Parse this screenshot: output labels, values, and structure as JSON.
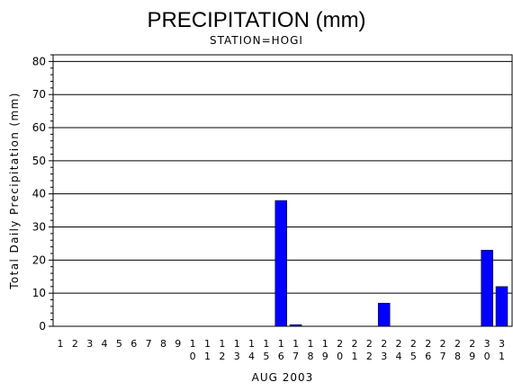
{
  "chart_data": {
    "type": "bar",
    "title": "PRECIPITATION (mm)",
    "subtitle": "STATION=HOGI",
    "xlabel": "AUG 2003",
    "ylabel": "Total Daily Precipitation (mm)",
    "ylim": [
      0,
      82
    ],
    "yticks": [
      0,
      10,
      20,
      30,
      40,
      50,
      60,
      70,
      80
    ],
    "grid": "horizontal",
    "bar_color": "#0000ff",
    "categories": [
      "1",
      "2",
      "3",
      "4",
      "5",
      "6",
      "7",
      "8",
      "9",
      "10",
      "11",
      "12",
      "13",
      "14",
      "15",
      "16",
      "17",
      "18",
      "19",
      "20",
      "21",
      "22",
      "23",
      "24",
      "25",
      "26",
      "27",
      "28",
      "29",
      "30",
      "31"
    ],
    "values": [
      0,
      0,
      0,
      0,
      0,
      0,
      0,
      0,
      0,
      0,
      0,
      0,
      0,
      0,
      0,
      38,
      0.5,
      0,
      0,
      0,
      0,
      0,
      7,
      0,
      0,
      0,
      0,
      0,
      0,
      23,
      12
    ]
  }
}
